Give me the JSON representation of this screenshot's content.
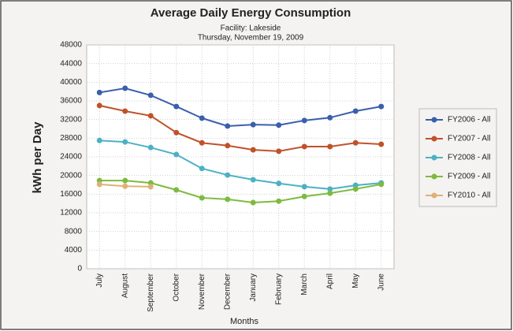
{
  "chart_data": {
    "type": "line",
    "title": "Average Daily Energy Consumption",
    "subtitle": "Facility: Lakeside",
    "date": "Thursday, November 19, 2009",
    "xlabel": "Months",
    "ylabel": "kWh per Day",
    "categories": [
      "July",
      "August",
      "September",
      "October",
      "November",
      "December",
      "January",
      "February",
      "March",
      "April",
      "May",
      "June"
    ],
    "ylim": [
      0,
      48000
    ],
    "yticks": [
      0,
      4000,
      8000,
      12000,
      16000,
      20000,
      24000,
      28000,
      32000,
      36000,
      40000,
      44000,
      48000
    ],
    "grid": true,
    "legend": "right",
    "series": [
      {
        "name": "FY2006 - All",
        "color": "#3a5fad",
        "values": [
          37800,
          38700,
          37200,
          34800,
          32300,
          30600,
          30900,
          30800,
          31800,
          32400,
          33800,
          34800
        ]
      },
      {
        "name": "FY2007 - All",
        "color": "#c0522a",
        "values": [
          35000,
          33800,
          32800,
          29200,
          27000,
          26400,
          25500,
          25200,
          26200,
          26200,
          27000,
          26700
        ]
      },
      {
        "name": "FY2008 - All",
        "color": "#4cb1c4",
        "values": [
          27500,
          27200,
          26000,
          24500,
          21500,
          20100,
          19100,
          18300,
          17600,
          17100,
          17900,
          18400
        ]
      },
      {
        "name": "FY2009 - All",
        "color": "#7dbb3f",
        "values": [
          18900,
          18900,
          18400,
          16900,
          15200,
          14900,
          14200,
          14500,
          15500,
          16200,
          17100,
          18100
        ]
      },
      {
        "name": "FY2010 - All",
        "color": "#dfb078",
        "values": [
          18100,
          17700,
          17600,
          null,
          null,
          null,
          null,
          null,
          null,
          null,
          null,
          null
        ]
      }
    ]
  }
}
